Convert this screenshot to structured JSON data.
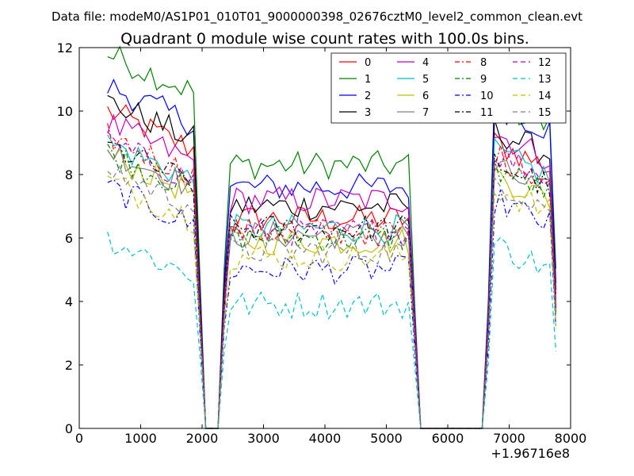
{
  "figure": {
    "suptitle": "Data file: modeM0/AS1P01_010T01_9000000398_02676cztM0_level2_common_clean.evt"
  },
  "chart_data": {
    "type": "line",
    "title": "Quadrant 0 module wise count rates with 100.0s bins.",
    "xlabel": "",
    "ylabel": "",
    "x_offset_label": "+1.96716e8",
    "xlim": [
      0,
      8000
    ],
    "ylim": [
      0,
      12
    ],
    "x_ticks": [
      0,
      1000,
      2000,
      3000,
      4000,
      5000,
      6000,
      7000,
      8000
    ],
    "y_ticks": [
      0,
      2,
      4,
      6,
      8,
      10,
      12
    ],
    "grid": false,
    "legend_position": "top-right",
    "legend_columns": 4,
    "segments": [
      {
        "x_start": 460,
        "x_end": 1860
      },
      {
        "x_start": 2460,
        "x_end": 5360
      },
      {
        "x_start": 6760,
        "x_end": 7660
      }
    ],
    "gaps": [
      [
        1960,
        2360
      ],
      [
        5460,
        6560
      ]
    ],
    "series": [
      {
        "name": "0",
        "color": "#ff0000",
        "dash": "solid",
        "levels": [
          9.4,
          7.2,
          8.8
        ]
      },
      {
        "name": "1",
        "color": "#008000",
        "dash": "solid",
        "levels": [
          11.2,
          8.9,
          10.1
        ]
      },
      {
        "name": "2",
        "color": "#0000ff",
        "dash": "solid",
        "levels": [
          10.2,
          8.2,
          10.0
        ]
      },
      {
        "name": "3",
        "color": "#000000",
        "dash": "solid",
        "levels": [
          9.7,
          7.6,
          9.2
        ]
      },
      {
        "name": "4",
        "color": "#bf00bf",
        "dash": "solid",
        "levels": [
          9.0,
          7.8,
          9.1
        ]
      },
      {
        "name": "5",
        "color": "#00bfbf",
        "dash": "solid",
        "levels": [
          8.4,
          6.9,
          8.5
        ]
      },
      {
        "name": "6",
        "color": "#bfbf00",
        "dash": "solid",
        "levels": [
          8.0,
          6.5,
          7.8
        ]
      },
      {
        "name": "7",
        "color": "#808080",
        "dash": "solid",
        "levels": [
          8.2,
          6.7,
          8.0
        ]
      },
      {
        "name": "8",
        "color": "#ff0000",
        "dash": "dashdot",
        "levels": [
          8.6,
          6.8,
          8.4
        ]
      },
      {
        "name": "9",
        "color": "#008000",
        "dash": "dashdot",
        "levels": [
          8.1,
          6.6,
          8.0
        ]
      },
      {
        "name": "10",
        "color": "#0000ff",
        "dash": "dashdot",
        "levels": [
          7.0,
          5.6,
          7.0
        ]
      },
      {
        "name": "11",
        "color": "#000000",
        "dash": "dashdot",
        "levels": [
          8.3,
          6.9,
          8.2
        ]
      },
      {
        "name": "12",
        "color": "#bf00bf",
        "dash": "dashed",
        "levels": [
          8.4,
          6.8,
          8.5
        ]
      },
      {
        "name": "13",
        "color": "#00bfbf",
        "dash": "dashed",
        "levels": [
          5.4,
          4.5,
          5.6
        ]
      },
      {
        "name": "14",
        "color": "#bfbf00",
        "dash": "dashed",
        "levels": [
          7.2,
          6.0,
          7.4
        ]
      },
      {
        "name": "15",
        "color": "#808080",
        "dash": "dashed",
        "levels": [
          7.6,
          6.2,
          7.6
        ]
      }
    ]
  }
}
